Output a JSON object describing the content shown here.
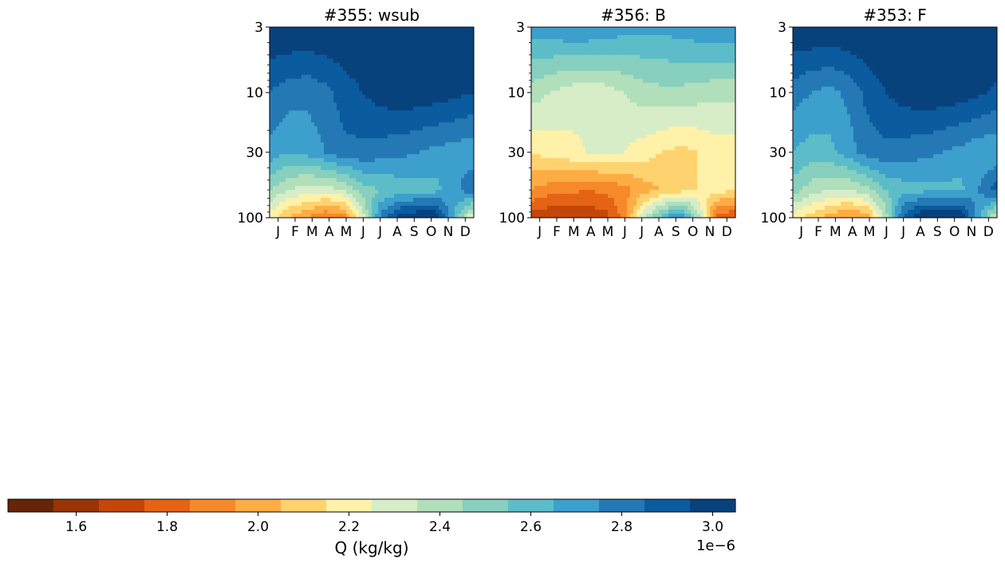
{
  "chart_data": [
    {
      "type": "heatmap",
      "title": "#355: wsub",
      "x": [
        "J",
        "F",
        "M",
        "A",
        "M",
        "J",
        "J",
        "A",
        "S",
        "O",
        "N",
        "D"
      ],
      "y_ticks": [
        3,
        10,
        30,
        100
      ],
      "y_scale": "log",
      "y_inverted": true,
      "ylim": [
        100,
        3
      ],
      "z_grid_y_levels": [
        3,
        10,
        30,
        60,
        100
      ],
      "z": [
        [
          3.05,
          3.05,
          3.05,
          3.05,
          3.05,
          3.05,
          3.05,
          3.05,
          3.05,
          3.05,
          3.05,
          3.05
        ],
        [
          2.85,
          2.8,
          2.78,
          2.82,
          2.9,
          2.95,
          3.0,
          3.02,
          3.02,
          3.0,
          2.98,
          2.95
        ],
        [
          2.72,
          2.65,
          2.68,
          2.75,
          2.82,
          2.82,
          2.8,
          2.78,
          2.75,
          2.72,
          2.7,
          2.68
        ],
        [
          2.45,
          2.35,
          2.3,
          2.3,
          2.35,
          2.5,
          2.55,
          2.58,
          2.6,
          2.62,
          2.72,
          2.85
        ],
        [
          2.2,
          2.05,
          1.95,
          1.85,
          1.9,
          2.3,
          2.8,
          3.0,
          3.05,
          3.05,
          2.6,
          2.2
        ]
      ]
    },
    {
      "type": "heatmap",
      "title": "#356: B",
      "x": [
        "J",
        "F",
        "M",
        "A",
        "M",
        "J",
        "J",
        "A",
        "S",
        "O",
        "N",
        "D"
      ],
      "y_ticks": [
        3,
        10,
        30,
        100
      ],
      "y_scale": "log",
      "y_inverted": true,
      "ylim": [
        100,
        3
      ],
      "z_grid_y_levels": [
        3,
        10,
        30,
        60,
        100
      ],
      "z": [
        [
          2.7,
          2.72,
          2.75,
          2.75,
          2.72,
          2.7,
          2.68,
          2.68,
          2.7,
          2.72,
          2.74,
          2.75
        ],
        [
          2.4,
          2.35,
          2.3,
          2.28,
          2.3,
          2.35,
          2.4,
          2.42,
          2.42,
          2.4,
          2.38,
          2.38
        ],
        [
          2.15,
          2.2,
          2.22,
          2.25,
          2.25,
          2.25,
          2.2,
          2.15,
          2.12,
          2.15,
          2.2,
          2.2
        ],
        [
          1.95,
          1.9,
          1.88,
          1.85,
          1.88,
          1.9,
          2.0,
          2.05,
          2.1,
          2.15,
          2.2,
          2.15
        ],
        [
          1.7,
          1.65,
          1.65,
          1.68,
          1.7,
          1.9,
          2.3,
          2.6,
          2.8,
          2.4,
          1.8,
          1.75
        ]
      ]
    },
    {
      "type": "heatmap",
      "title": "#353: F",
      "x": [
        "J",
        "F",
        "M",
        "A",
        "M",
        "J",
        "J",
        "A",
        "S",
        "O",
        "N",
        "D"
      ],
      "y_ticks": [
        3,
        10,
        30,
        100
      ],
      "y_scale": "log",
      "y_inverted": true,
      "ylim": [
        100,
        3
      ],
      "z_grid_y_levels": [
        3,
        10,
        30,
        60,
        100
      ],
      "z": [
        [
          3.05,
          3.05,
          3.05,
          3.05,
          3.05,
          3.05,
          3.05,
          3.05,
          3.05,
          3.05,
          3.05,
          3.05
        ],
        [
          2.8,
          2.75,
          2.72,
          2.78,
          2.88,
          2.95,
          3.0,
          3.02,
          3.02,
          3.0,
          2.97,
          2.93
        ],
        [
          2.65,
          2.6,
          2.62,
          2.7,
          2.8,
          2.82,
          2.8,
          2.78,
          2.75,
          2.72,
          2.68,
          2.66
        ],
        [
          2.5,
          2.4,
          2.35,
          2.35,
          2.42,
          2.55,
          2.6,
          2.62,
          2.62,
          2.62,
          2.75,
          2.9
        ],
        [
          2.2,
          2.1,
          2.0,
          1.92,
          1.98,
          2.4,
          2.9,
          3.05,
          3.05,
          3.05,
          2.7,
          2.3
        ]
      ]
    }
  ],
  "colorbar": {
    "label": "Q (kg/kg)",
    "multiplier": "1e−6",
    "ticks": [
      "1.6",
      "1.8",
      "2.0",
      "2.2",
      "2.4",
      "2.6",
      "2.8",
      "3.0"
    ],
    "tick_values": [
      1.6,
      1.8,
      2.0,
      2.2,
      2.4,
      2.6,
      2.8,
      3.0
    ],
    "range": [
      1.45,
      3.05
    ],
    "levels": [
      1.45,
      1.55,
      1.65,
      1.75,
      1.85,
      1.95,
      2.05,
      2.15,
      2.25,
      2.35,
      2.45,
      2.55,
      2.65,
      2.75,
      2.85,
      2.95,
      3.05
    ],
    "colors": [
      "#662506",
      "#993404",
      "#c4460a",
      "#e46314",
      "#f6892b",
      "#fdad44",
      "#fed26f",
      "#fff1a8",
      "#d6edc8",
      "#b1dfbb",
      "#87cfbf",
      "#5cbdc9",
      "#3d9fcc",
      "#2479b5",
      "#0b5b9f",
      "#08427d"
    ]
  }
}
